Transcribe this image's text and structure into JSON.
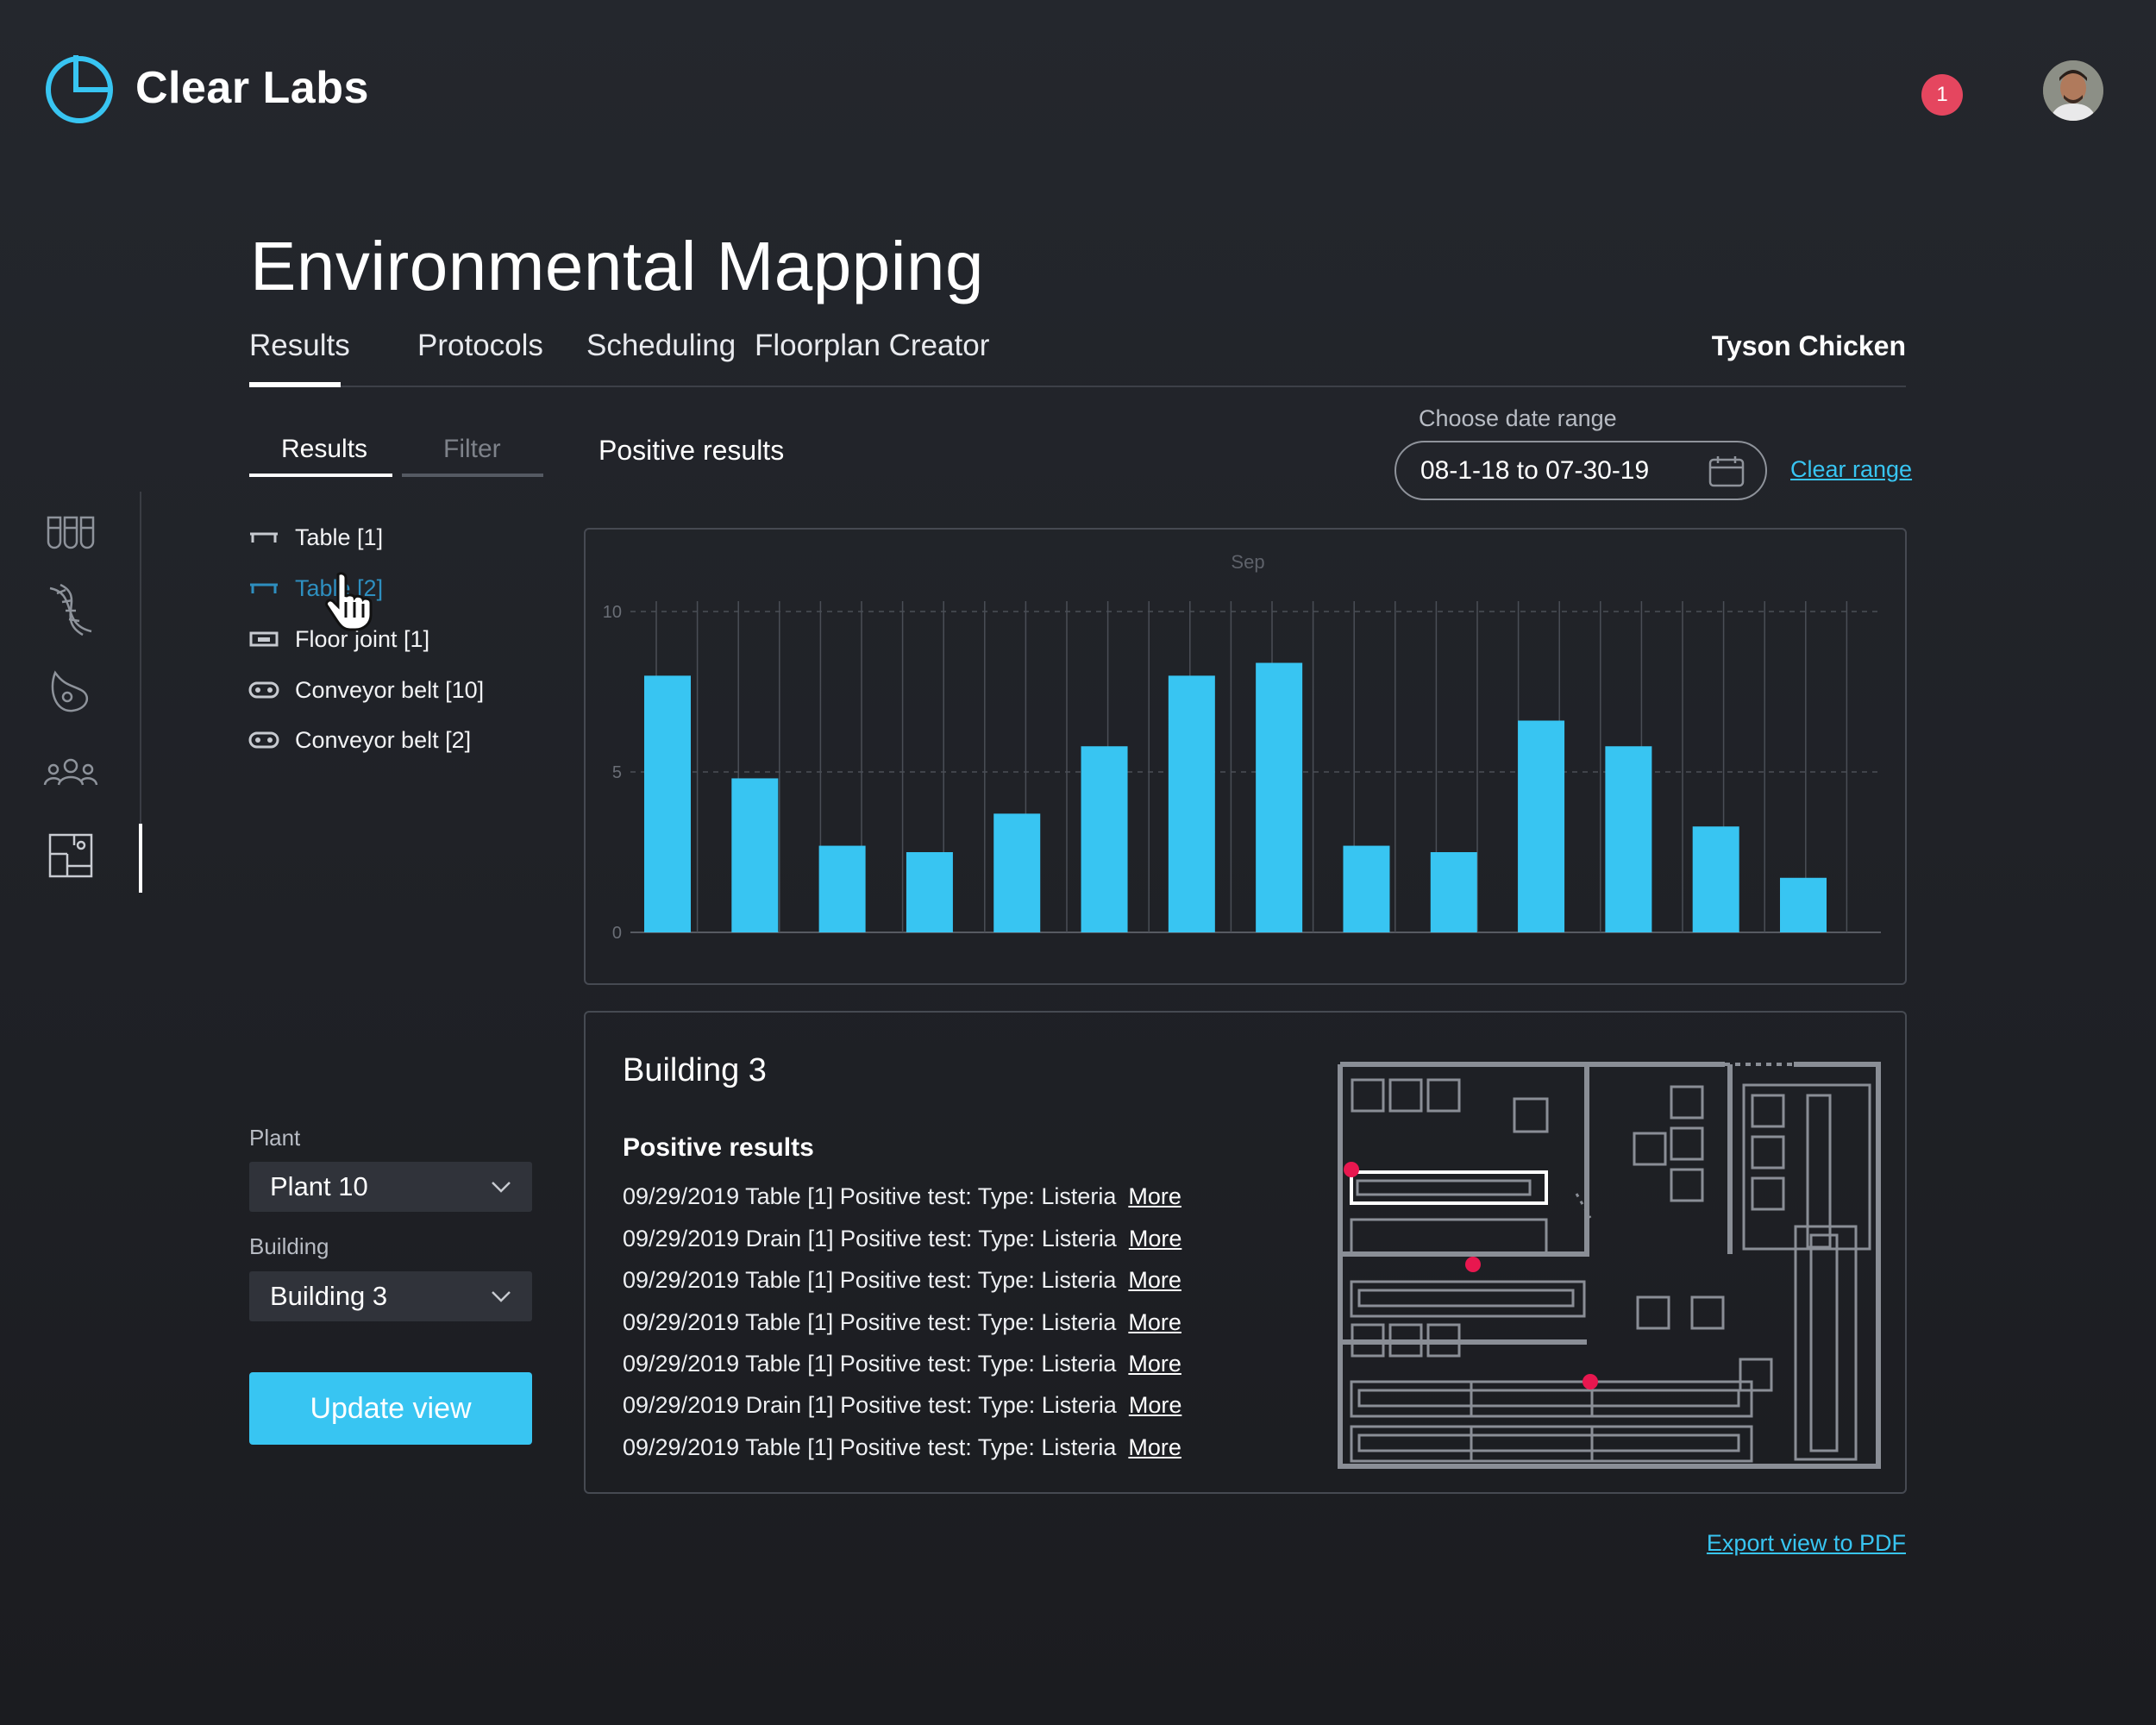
{
  "app": {
    "name": "Clear Labs"
  },
  "header": {
    "notification_count": "1"
  },
  "page": {
    "title": "Environmental Mapping",
    "tabs": [
      {
        "label": "Results"
      },
      {
        "label": "Protocols"
      },
      {
        "label": "Scheduling"
      },
      {
        "label": "Floorplan Creator"
      }
    ],
    "client": "Tyson Chicken"
  },
  "sidebar": {
    "subtabs": [
      {
        "label": "Results"
      },
      {
        "label": "Filter"
      }
    ],
    "locations": [
      {
        "label": "Table [1]",
        "icon": "table-icon"
      },
      {
        "label": "Table [2]",
        "icon": "table-icon",
        "highlighted": true
      },
      {
        "label": "Floor joint [1]",
        "icon": "floor-joint-icon"
      },
      {
        "label": "Conveyor belt [10]",
        "icon": "conveyor-belt-icon"
      },
      {
        "label": "Conveyor belt [2]",
        "icon": "conveyor-belt-icon"
      }
    ],
    "plant": {
      "label": "Plant",
      "value": "Plant 10"
    },
    "building": {
      "label": "Building",
      "value": "Building 3"
    },
    "update_label": "Update view"
  },
  "rail_icons": [
    "test-tubes-icon",
    "dna-icon",
    "pathogen-icon",
    "people-icon",
    "floorplan-icon"
  ],
  "results": {
    "title": "Positive results",
    "date_range_label": "Choose date range",
    "date_range_value": "08-1-18 to 07-30-19",
    "clear_label": "Clear range"
  },
  "chart_data": {
    "type": "bar",
    "title": "Sep",
    "ylim": [
      0,
      10
    ],
    "yticks": [
      "0",
      "5",
      "10"
    ],
    "grid": true,
    "values": [
      8.0,
      4.8,
      2.7,
      2.5,
      3.7,
      5.8,
      8.0,
      8.4,
      2.7,
      2.5,
      6.6,
      5.8,
      3.3,
      1.7
    ],
    "color": "#38c5f2"
  },
  "building_panel": {
    "title": "Building 3",
    "subtitle": "Positive results",
    "more_label": "More",
    "rows": [
      "09/29/2019 Table [1] Positive test: Type: Listeria",
      "09/29/2019 Drain [1] Positive test: Type: Listeria",
      "09/29/2019 Table [1] Positive test: Type: Listeria",
      "09/29/2019 Table [1] Positive test: Type: Listeria",
      "09/29/2019 Table [1] Positive test: Type: Listeria",
      "09/29/2019 Drain [1] Positive test: Type: Listeria",
      "09/29/2019 Table [1] Positive test: Type: Listeria"
    ]
  },
  "export_label": "Export view to PDF",
  "colors": {
    "accent": "#38c5f2",
    "alert": "#e5465f",
    "background": "#212328",
    "marker": "#e8174f"
  }
}
